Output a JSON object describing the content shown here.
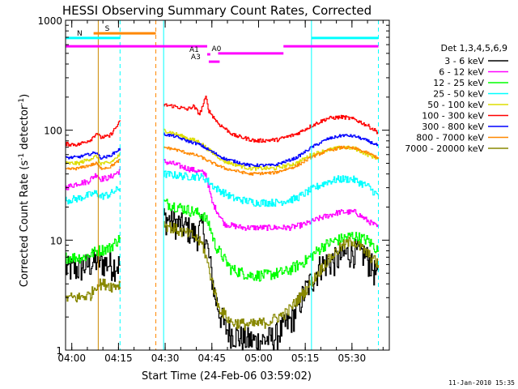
{
  "chart_data": {
    "type": "line",
    "title": "HESSI Observing Summary Count Rates, Corrected",
    "xlabel": "Start Time (24-Feb-06 03:59:02)",
    "ylabel_main": "Corrected Count Rate (s",
    "ylabel_sup1": "-1",
    "ylabel_mid": " detector",
    "ylabel_sup2": "-1",
    "ylabel_end": ")",
    "yscale": "log",
    "ylim": [
      1,
      1000
    ],
    "xlim_min": [
      -1,
      103
    ],
    "x_ticks": [
      {
        "min": 1,
        "label": "04:00"
      },
      {
        "min": 16,
        "label": "04:15"
      },
      {
        "min": 31,
        "label": "04:30"
      },
      {
        "min": 46,
        "label": "04:45"
      },
      {
        "min": 61,
        "label": "05:00"
      },
      {
        "min": 76,
        "label": "05:15"
      },
      {
        "min": 91,
        "label": "05:30"
      }
    ],
    "y_ticks": [
      {
        "value": 1,
        "label": "1"
      },
      {
        "value": 10,
        "label": "10"
      },
      {
        "value": 100,
        "label": "100"
      },
      {
        "value": 1000,
        "label": "1000"
      }
    ],
    "legend_title": "Det 1,3,4,5,6,9",
    "legend_position": "right",
    "timestamp": "11-Jan-2010 15:35",
    "gaps": [
      [
        16.5,
        30.5
      ],
      [
        99.5,
        103
      ]
    ],
    "series": [
      {
        "name": "3 - 6 keV",
        "color": "#000000",
        "noise": 0.3,
        "points": [
          [
            -1,
            5.5
          ],
          [
            3,
            5.5
          ],
          [
            9,
            6.5
          ],
          [
            14,
            6
          ],
          [
            16.5,
            6
          ],
          [
            30.5,
            16
          ],
          [
            38,
            13
          ],
          [
            41,
            11
          ],
          [
            43,
            14
          ],
          [
            45,
            7
          ],
          [
            47,
            3
          ],
          [
            50,
            1.6
          ],
          [
            55,
            1.3
          ],
          [
            60,
            1.2
          ],
          [
            66,
            1.3
          ],
          [
            72,
            2
          ],
          [
            76,
            3.5
          ],
          [
            81,
            6
          ],
          [
            85,
            6.5
          ],
          [
            91,
            8
          ],
          [
            95,
            7.5
          ],
          [
            99.5,
            4.5
          ]
        ]
      },
      {
        "name": "6 - 12 keV",
        "color": "#ff00ff",
        "noise": 0.06,
        "points": [
          [
            -1,
            30
          ],
          [
            3,
            33
          ],
          [
            6,
            34
          ],
          [
            8,
            38
          ],
          [
            9,
            40
          ],
          [
            10,
            36
          ],
          [
            13,
            37
          ],
          [
            16,
            42
          ],
          [
            16.5,
            45
          ],
          [
            30.5,
            52
          ],
          [
            34,
            49
          ],
          [
            38,
            45
          ],
          [
            42,
            42
          ],
          [
            44,
            40
          ],
          [
            46,
            22
          ],
          [
            50,
            14
          ],
          [
            56,
            13
          ],
          [
            63,
            13
          ],
          [
            71,
            13
          ],
          [
            76,
            14
          ],
          [
            81,
            16
          ],
          [
            87,
            18
          ],
          [
            92,
            18
          ],
          [
            96,
            15
          ],
          [
            99.5,
            13
          ]
        ]
      },
      {
        "name": "12 - 25 keV",
        "color": "#00ff00",
        "noise": 0.12,
        "points": [
          [
            -1,
            7
          ],
          [
            5,
            7
          ],
          [
            9,
            8
          ],
          [
            13,
            8.5
          ],
          [
            16.5,
            10.5
          ],
          [
            30.5,
            22
          ],
          [
            38,
            19
          ],
          [
            43,
            17
          ],
          [
            45,
            14
          ],
          [
            47,
            9
          ],
          [
            52,
            5.5
          ],
          [
            58,
            4.8
          ],
          [
            63,
            4.8
          ],
          [
            70,
            5.2
          ],
          [
            76,
            6.5
          ],
          [
            82,
            9
          ],
          [
            86,
            10
          ],
          [
            91,
            11
          ],
          [
            96,
            10
          ],
          [
            99.5,
            8
          ]
        ]
      },
      {
        "name": "25 - 50 keV",
        "color": "#00ffff",
        "noise": 0.08,
        "points": [
          [
            -1,
            23
          ],
          [
            3,
            24
          ],
          [
            9,
            27
          ],
          [
            10,
            25
          ],
          [
            13,
            26
          ],
          [
            16.5,
            30
          ],
          [
            30.5,
            40
          ],
          [
            38,
            38
          ],
          [
            42,
            38
          ],
          [
            44,
            36
          ],
          [
            47,
            30
          ],
          [
            53,
            24
          ],
          [
            60,
            22
          ],
          [
            67,
            22
          ],
          [
            73,
            24
          ],
          [
            78,
            29
          ],
          [
            83,
            34
          ],
          [
            87,
            36
          ],
          [
            91,
            36
          ],
          [
            96,
            31
          ],
          [
            99.5,
            25
          ]
        ]
      },
      {
        "name": "50 - 100 keV",
        "color": "#dddd00",
        "noise": 0.04,
        "points": [
          [
            -1,
            50
          ],
          [
            3,
            50
          ],
          [
            9,
            58
          ],
          [
            10,
            50
          ],
          [
            13,
            50
          ],
          [
            16.5,
            60
          ],
          [
            30.5,
            100
          ],
          [
            33,
            95
          ],
          [
            38,
            85
          ],
          [
            42,
            78
          ],
          [
            45,
            66
          ],
          [
            50,
            52
          ],
          [
            58,
            45
          ],
          [
            66,
            45
          ],
          [
            73,
            50
          ],
          [
            78,
            60
          ],
          [
            83,
            66
          ],
          [
            88,
            70
          ],
          [
            92,
            68
          ],
          [
            96,
            60
          ],
          [
            99.5,
            55
          ]
        ]
      },
      {
        "name": "100 - 300 keV",
        "color": "#ff0000",
        "noise": 0.04,
        "points": [
          [
            -1,
            75
          ],
          [
            3,
            74
          ],
          [
            7,
            82
          ],
          [
            9,
            95
          ],
          [
            10,
            86
          ],
          [
            13,
            88
          ],
          [
            16.5,
            120
          ],
          [
            30.5,
            170
          ],
          [
            34,
            165
          ],
          [
            38,
            155
          ],
          [
            40,
            165
          ],
          [
            42,
            140
          ],
          [
            44,
            200
          ],
          [
            45,
            150
          ],
          [
            48,
            115
          ],
          [
            53,
            90
          ],
          [
            60,
            80
          ],
          [
            67,
            82
          ],
          [
            73,
            92
          ],
          [
            78,
            110
          ],
          [
            83,
            128
          ],
          [
            88,
            132
          ],
          [
            92,
            125
          ],
          [
            96,
            110
          ],
          [
            99.5,
            95
          ]
        ]
      },
      {
        "name": "300 - 800 keV",
        "color": "#0000ff",
        "noise": 0.03,
        "points": [
          [
            -1,
            56
          ],
          [
            3,
            57
          ],
          [
            9,
            63
          ],
          [
            10,
            56
          ],
          [
            13,
            58
          ],
          [
            16.5,
            68
          ],
          [
            30.5,
            92
          ],
          [
            34,
            88
          ],
          [
            38,
            80
          ],
          [
            42,
            74
          ],
          [
            45,
            66
          ],
          [
            50,
            55
          ],
          [
            58,
            48
          ],
          [
            66,
            48
          ],
          [
            73,
            56
          ],
          [
            78,
            70
          ],
          [
            83,
            83
          ],
          [
            88,
            90
          ],
          [
            92,
            88
          ],
          [
            96,
            80
          ],
          [
            99.5,
            72
          ]
        ]
      },
      {
        "name": "800 - 7000 keV",
        "color": "#ff8800",
        "noise": 0.03,
        "points": [
          [
            -1,
            44
          ],
          [
            3,
            45
          ],
          [
            9,
            50
          ],
          [
            10,
            45
          ],
          [
            13,
            46
          ],
          [
            16.5,
            54
          ],
          [
            30.5,
            70
          ],
          [
            34,
            67
          ],
          [
            38,
            62
          ],
          [
            42,
            58
          ],
          [
            45,
            52
          ],
          [
            50,
            45
          ],
          [
            58,
            40
          ],
          [
            66,
            41
          ],
          [
            73,
            47
          ],
          [
            78,
            57
          ],
          [
            83,
            65
          ],
          [
            88,
            70
          ],
          [
            92,
            68
          ],
          [
            96,
            62
          ],
          [
            99.5,
            56
          ]
        ]
      },
      {
        "name": "7000 - 20000 keV",
        "color": "#888800",
        "noise": 0.12,
        "points": [
          [
            -1,
            3
          ],
          [
            3,
            3
          ],
          [
            7,
            3.2
          ],
          [
            9,
            4
          ],
          [
            12,
            4
          ],
          [
            14,
            3.8
          ],
          [
            16.5,
            4
          ],
          [
            30.5,
            14
          ],
          [
            36,
            12
          ],
          [
            40,
            11
          ],
          [
            43,
            9
          ],
          [
            45,
            5.5
          ],
          [
            48,
            2.5
          ],
          [
            52,
            1.8
          ],
          [
            58,
            1.7
          ],
          [
            64,
            1.8
          ],
          [
            70,
            2.2
          ],
          [
            76,
            3.5
          ],
          [
            82,
            6
          ],
          [
            87,
            8.5
          ],
          [
            91,
            10
          ],
          [
            95,
            8
          ],
          [
            99.5,
            6
          ]
        ]
      }
    ],
    "flag_bars": [
      {
        "label": "S",
        "color": "#ff8800",
        "y": 760,
        "x0": 8,
        "x1": 28
      },
      {
        "label": "N",
        "color": "#00ffff",
        "y": 690,
        "x0": -1,
        "x1": 16.5
      },
      {
        "label": "",
        "color": "#00ffff",
        "y": 690,
        "x0": 78,
        "x1": 99.5
      },
      {
        "label": "",
        "color": "#ff00ff",
        "y": 580,
        "x0": -1,
        "x1": 44.5
      },
      {
        "label": "",
        "color": "#ff00ff",
        "y": 580,
        "x0": 69,
        "x1": 99.5
      },
      {
        "label": "A0",
        "color": "#ff00ff",
        "y": 500,
        "x0": 48,
        "x1": 69
      },
      {
        "label": "A1",
        "color": "#ff00ff",
        "y": 490,
        "x0": 44.5,
        "x1": 45.5
      },
      {
        "label": "A3",
        "color": "#ff00ff",
        "y": 420,
        "x0": 45,
        "x1": 48.5
      }
    ],
    "vlines": [
      {
        "min": -1,
        "color": "#00ffff",
        "dash": false
      },
      {
        "min": 9.5,
        "color": "#cc8800",
        "dash": false
      },
      {
        "min": 16.5,
        "color": "#00ffff",
        "dash": true
      },
      {
        "min": 28,
        "color": "#ff8800",
        "dash": true
      },
      {
        "min": 30.5,
        "color": "#00ffff",
        "dash": false
      },
      {
        "min": 78,
        "color": "#00ffff",
        "dash": false
      },
      {
        "min": 99.5,
        "color": "#00ffff",
        "dash": true
      }
    ]
  }
}
